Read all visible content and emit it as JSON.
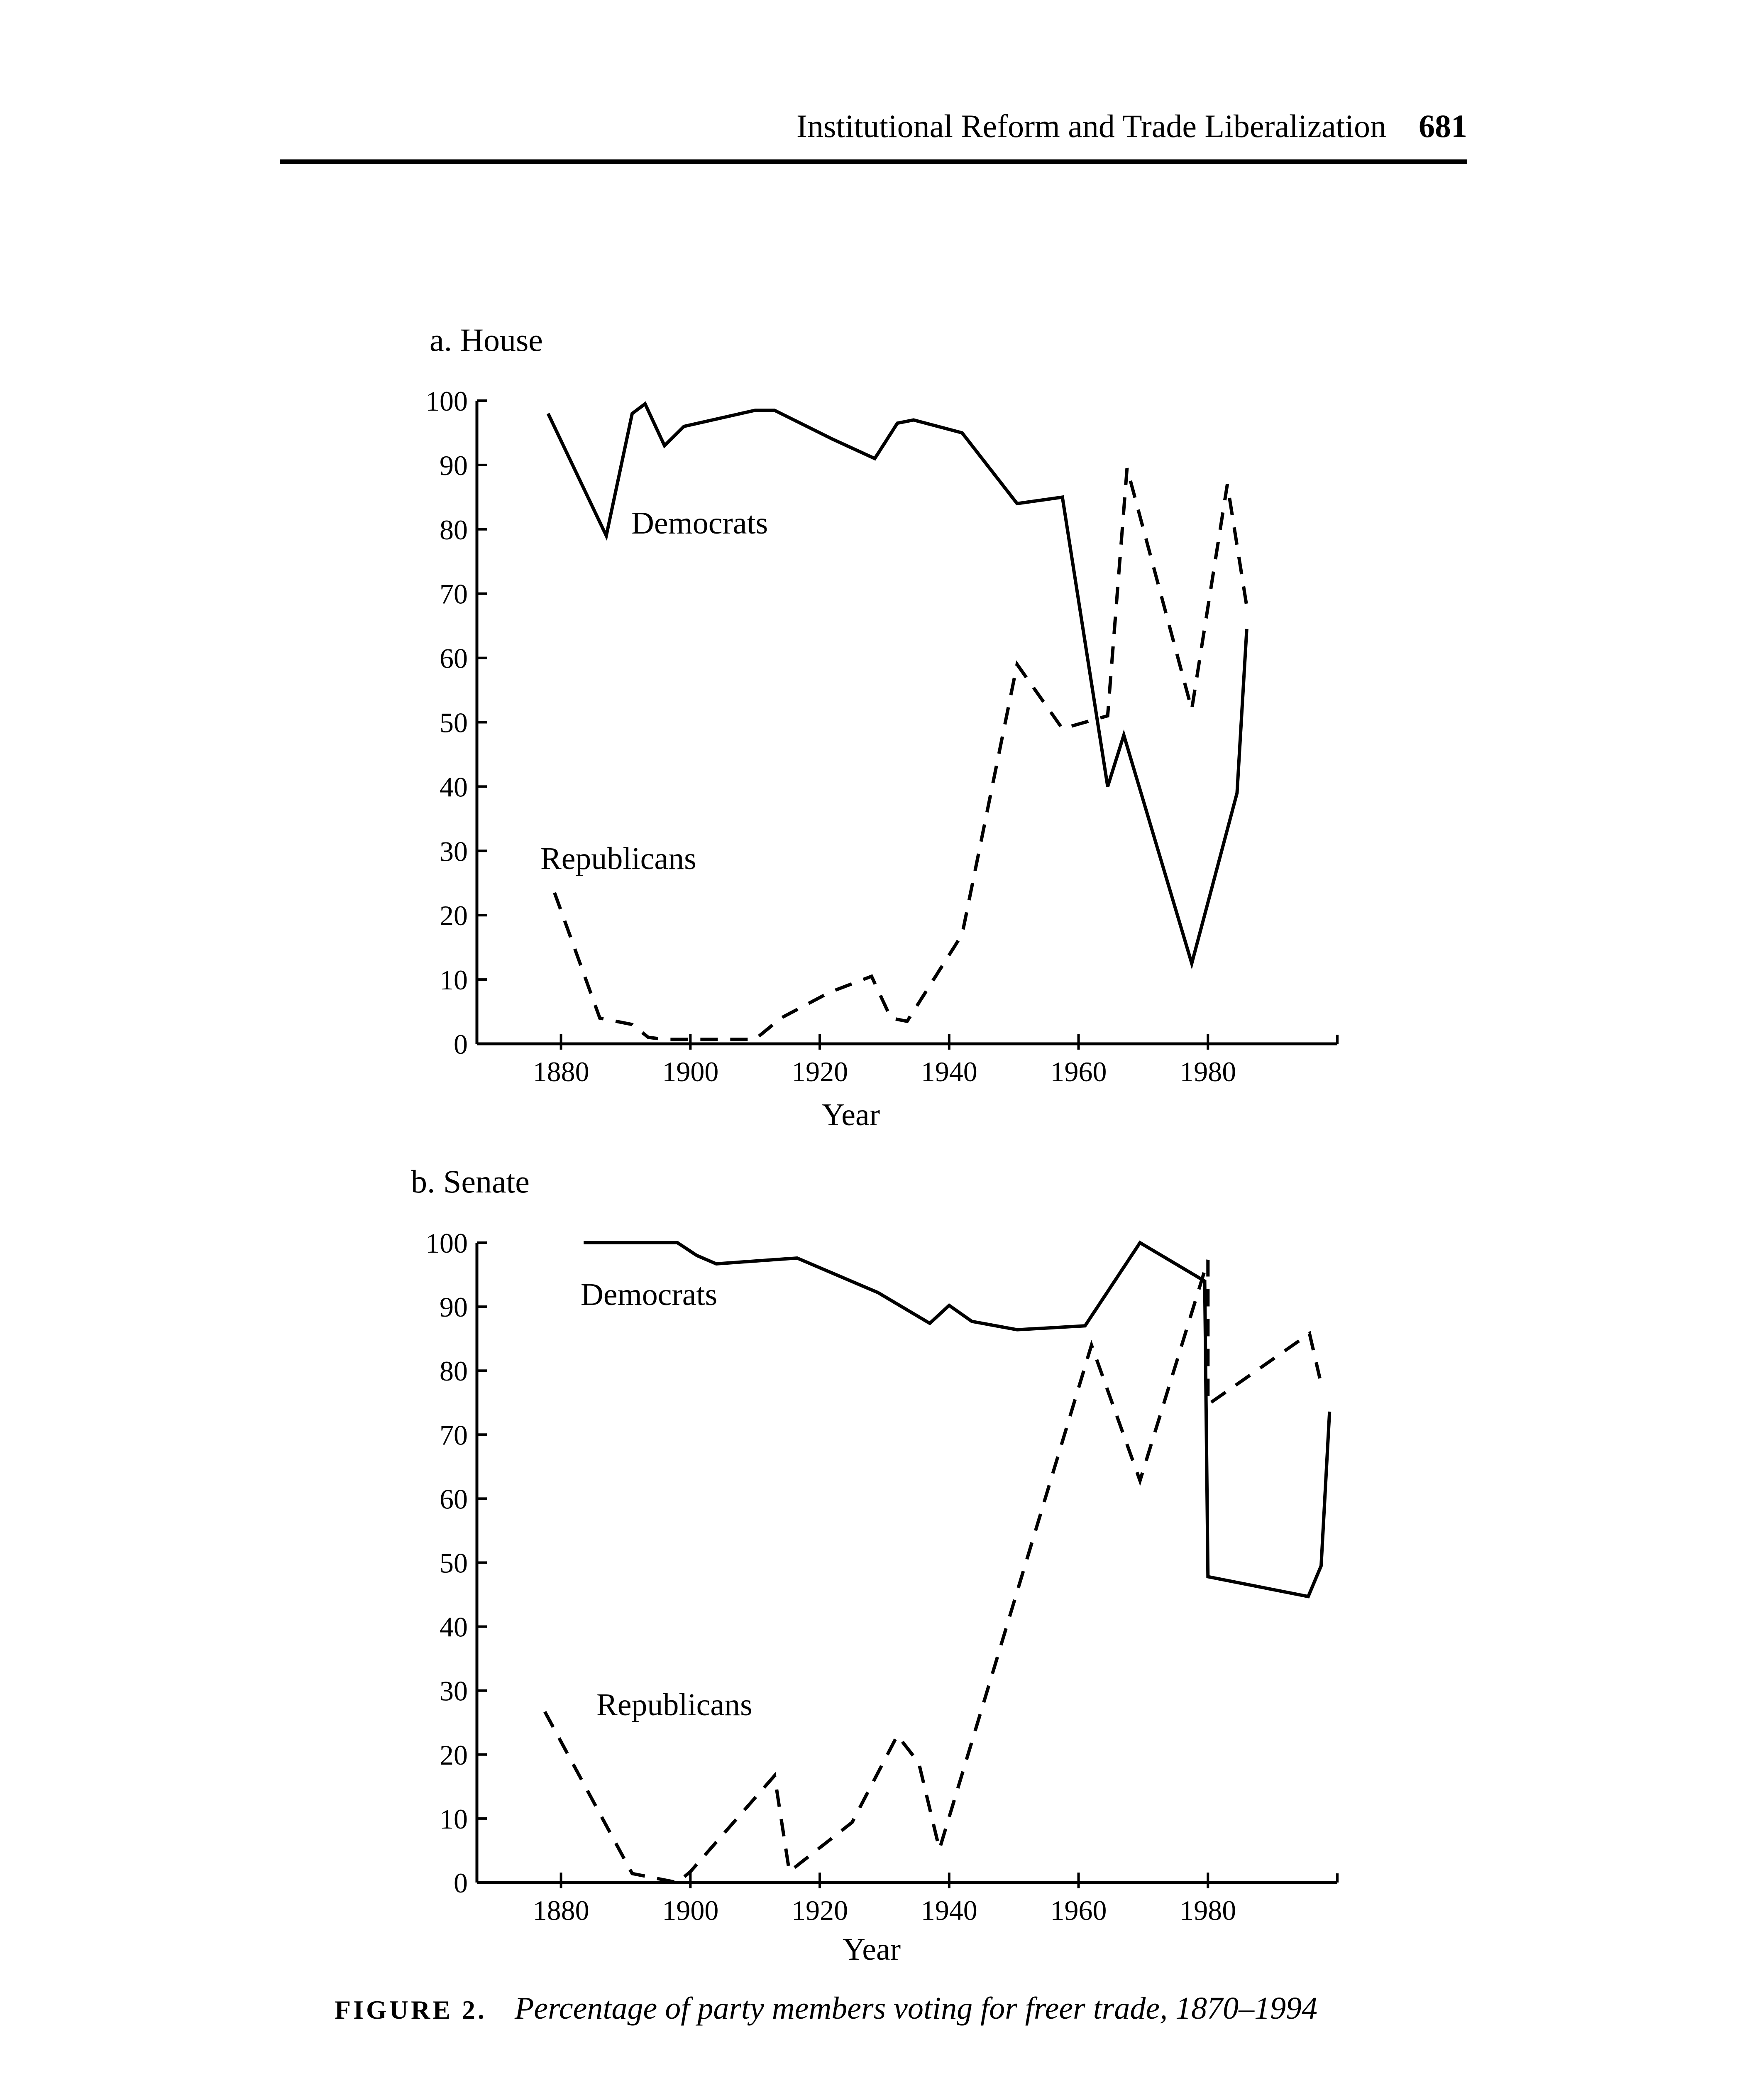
{
  "header": {
    "running_title": "Institutional Reform and Trade Liberalization",
    "page_number": "681"
  },
  "caption": {
    "label": "FIGURE 2.",
    "text": "Percentage of party members voting for freer trade, 1870–1994"
  },
  "chart_data": [
    {
      "type": "line",
      "title": "a. House",
      "xlabel": "Year",
      "ylabel": "",
      "xlim": [
        1867,
        2000
      ],
      "ylim": [
        0,
        100
      ],
      "xticks": [
        1880,
        1900,
        1920,
        1940,
        1960,
        1980
      ],
      "yticks": [
        0,
        10,
        20,
        30,
        40,
        50,
        60,
        70,
        80,
        90,
        100
      ],
      "grid": false,
      "series": [
        {
          "name": "Democrats",
          "style": "solid",
          "color": "#000000",
          "points": [
            [
              1878,
              98
            ],
            [
              1887,
              79
            ],
            [
              1891,
              98
            ],
            [
              1893,
              99.5
            ],
            [
              1896,
              93
            ],
            [
              1899,
              96
            ],
            [
              1910,
              98.5
            ],
            [
              1913,
              98.5
            ],
            [
              1922,
              94
            ],
            [
              1928.5,
              91
            ],
            [
              1932,
              96.5
            ],
            [
              1934.5,
              97
            ],
            [
              1942,
              95
            ],
            [
              1950.5,
              84
            ],
            [
              1957.5,
              85
            ],
            [
              1964.5,
              40
            ],
            [
              1967,
              48
            ],
            [
              1977.5,
              12.5
            ],
            [
              1984.5,
              39
            ],
            [
              1986,
              64.5
            ]
          ]
        },
        {
          "name": "Republicans",
          "style": "dashed",
          "color": "#000000",
          "points": [
            [
              1879,
              23.5
            ],
            [
              1886,
              4
            ],
            [
              1891,
              3
            ],
            [
              1893.5,
              1
            ],
            [
              1896,
              0.7
            ],
            [
              1910,
              0.7
            ],
            [
              1914,
              4
            ],
            [
              1921.5,
              8
            ],
            [
              1928,
              10.5
            ],
            [
              1931,
              4
            ],
            [
              1933.5,
              3.5
            ],
            [
              1942,
              17
            ],
            [
              1950.5,
              59
            ],
            [
              1957.5,
              49
            ],
            [
              1964.5,
              51
            ],
            [
              1967.5,
              89.5
            ],
            [
              1977.5,
              52
            ],
            [
              1983,
              87
            ],
            [
              1986,
              68
            ]
          ]
        }
      ]
    },
    {
      "type": "line",
      "title": "b. Senate",
      "xlabel": "Year",
      "ylabel": "",
      "xlim": [
        1867,
        2000
      ],
      "ylim": [
        0,
        100
      ],
      "xticks": [
        1880,
        1900,
        1920,
        1940,
        1960,
        1980
      ],
      "yticks": [
        0,
        10,
        20,
        30,
        40,
        50,
        60,
        70,
        80,
        90,
        100
      ],
      "grid": false,
      "series": [
        {
          "name": "Democrats",
          "style": "solid",
          "color": "#000000",
          "points": [
            [
              1883.5,
              100
            ],
            [
              1898,
              100
            ],
            [
              1901,
              98
            ],
            [
              1904,
              96.7
            ],
            [
              1916.5,
              97.6
            ],
            [
              1929,
              92.2
            ],
            [
              1937,
              87.4
            ],
            [
              1940,
              90.2
            ],
            [
              1943.5,
              87.7
            ],
            [
              1950.5,
              86.4
            ],
            [
              1961,
              87
            ],
            [
              1969.5,
              100
            ],
            [
              1979.5,
              94
            ],
            [
              1980,
              47.8
            ],
            [
              1995.5,
              44.7
            ],
            [
              1997.5,
              49.5
            ],
            [
              1998.8,
              73.6
            ]
          ]
        },
        {
          "name": "Republicans",
          "style": "dashed",
          "color": "#000000",
          "points": [
            [
              1877.5,
              26.7
            ],
            [
              1891,
              1.4
            ],
            [
              1898,
              0
            ],
            [
              1900,
              1.7
            ],
            [
              1913,
              16.7
            ],
            [
              1915.3,
              1.7
            ],
            [
              1925,
              9.4
            ],
            [
              1932,
              23
            ],
            [
              1935.3,
              18.7
            ],
            [
              1938.5,
              5.2
            ],
            [
              1962,
              84
            ],
            [
              1969.5,
              62.8
            ],
            [
              1980,
              97.3
            ],
            [
              1980,
              74.7
            ],
            [
              1995.7,
              85.8
            ],
            [
              1997.3,
              78.8
            ]
          ]
        }
      ]
    }
  ]
}
